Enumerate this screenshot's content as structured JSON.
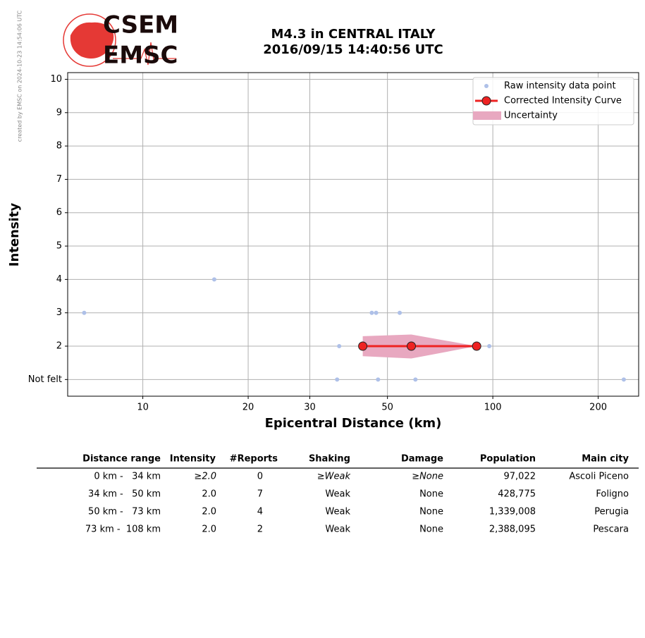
{
  "logo": {
    "top": "CSEM",
    "bottom": "EMSC"
  },
  "credit": "created by EMSC on 2024-10-23 14:54:06 UTC",
  "chart_data": {
    "type": "scatter",
    "title": "M4.3 in CENTRAL ITALY",
    "subtitle": "2016/09/15 14:40:56 UTC",
    "x_label": "Epicentral Distance (km)",
    "y_label": "Intensity",
    "xscale": "log",
    "xlim": [
      6.1,
      261
    ],
    "xticks": [
      10,
      20,
      30,
      50,
      100,
      200
    ],
    "ylim": [
      0.5,
      10.2
    ],
    "yticks": [
      {
        "value": 1,
        "label": "Not felt"
      },
      2,
      3,
      4,
      5,
      6,
      7,
      8,
      9,
      10
    ],
    "grid": true,
    "legend": "upper right",
    "series": [
      {
        "name": "Raw intensity data point",
        "color": "#aec0e8",
        "x": [
          6.8,
          16.0,
          45.1,
          46.4,
          54.2,
          36.4,
          97.7,
          35.9,
          47.0,
          60.1,
          236.7
        ],
        "values": [
          3,
          4,
          3,
          3,
          3,
          2,
          2,
          1,
          1,
          1,
          1
        ]
      },
      {
        "name": "Corrected Intensity Curve",
        "color": "#ee2222",
        "x": [
          42.5,
          58.5,
          89.9
        ],
        "values": [
          2,
          2,
          2
        ]
      },
      {
        "name": "Uncertainty",
        "color": "#e8a8c0",
        "x": [
          42.5,
          58.5,
          89.9
        ],
        "upper": [
          2.3,
          2.35,
          2
        ],
        "lower": [
          1.7,
          1.63,
          2
        ]
      }
    ]
  },
  "table": {
    "columns": [
      "Distance range",
      "Intensity",
      "#Reports",
      "Shaking",
      "Damage",
      "Population",
      "Main city"
    ],
    "rows": [
      [
        "0 km -   34 km",
        "≥2.0",
        "0",
        "≥Weak",
        "≥None",
        "97,022",
        "Ascoli Piceno"
      ],
      [
        "34 km -   50 km",
        "2.0",
        "7",
        "Weak",
        "None",
        "428,775",
        "Foligno"
      ],
      [
        "50 km -   73 km",
        "2.0",
        "4",
        "Weak",
        "None",
        "1,339,008",
        "Perugia"
      ],
      [
        "73 km -  108 km",
        "2.0",
        "2",
        "Weak",
        "None",
        "2,388,095",
        "Pescara"
      ]
    ]
  }
}
